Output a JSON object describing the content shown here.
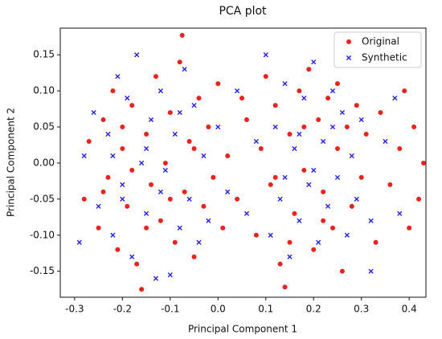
{
  "chart_data": {
    "type": "scatter",
    "title": "PCA plot",
    "x_label": "Principal Component 1",
    "y_label": "Principal Component 2",
    "xlim": [
      -0.33,
      0.435
    ],
    "ylim": [
      -0.186,
      0.187
    ],
    "xticks": [
      -0.3,
      -0.2,
      -0.1,
      {
        "value": 0,
        "label": "0.0"
      },
      0.1,
      0.2,
      0.3,
      0.4
    ],
    "yticks": [
      -0.15,
      {
        "value": -0.1,
        "label": "-0.10"
      },
      -0.05,
      {
        "value": 0,
        "label": "0.00"
      },
      0.05,
      {
        "value": 0.1,
        "label": "0.10"
      },
      0.15
    ],
    "legend": "upper right",
    "series": [
      {
        "name": "Original",
        "color": "#e8241c",
        "marker": "circle",
        "x": [
          -0.28,
          -0.27,
          -0.25,
          -0.24,
          -0.23,
          -0.22,
          -0.21,
          -0.2,
          -0.19,
          -0.18,
          -0.17,
          -0.16,
          -0.15,
          -0.14,
          -0.13,
          -0.12,
          -0.11,
          -0.1,
          -0.09,
          -0.08,
          -0.075,
          -0.07,
          -0.06,
          -0.05,
          -0.04,
          -0.03,
          -0.02,
          -0.01,
          0.0,
          0.01,
          0.02,
          0.04,
          0.06,
          0.08,
          0.09,
          0.1,
          0.11,
          0.12,
          0.13,
          0.14,
          0.15,
          0.16,
          0.17,
          0.18,
          0.19,
          0.2,
          0.21,
          0.22,
          0.23,
          0.24,
          0.25,
          0.26,
          0.27,
          0.28,
          0.29,
          0.3,
          0.31,
          0.33,
          0.34,
          0.36,
          0.38,
          0.4,
          0.41,
          0.42,
          0.43,
          0.39,
          -0.15,
          -0.2,
          0.18,
          0.22,
          -0.1,
          0.12,
          0.05,
          -0.18,
          0.25,
          -0.24,
          0.15,
          -0.05
        ],
        "values": [
          -0.05,
          0.03,
          -0.09,
          0.06,
          -0.02,
          0.1,
          -0.12,
          0.02,
          -0.06,
          0.08,
          -0.14,
          -0.175,
          0.04,
          -0.03,
          0.12,
          -0.08,
          0.0,
          0.07,
          -0.11,
          0.14,
          0.177,
          -0.04,
          0.03,
          -0.13,
          0.09,
          -0.06,
          0.05,
          -0.02,
          0.11,
          -0.09,
          0.01,
          -0.05,
          0.06,
          -0.1,
          0.02,
          0.12,
          -0.03,
          0.08,
          -0.14,
          -0.172,
          0.04,
          -0.07,
          0.1,
          -0.01,
          0.13,
          -0.12,
          0.06,
          -0.04,
          0.09,
          -0.09,
          0.02,
          -0.15,
          0.05,
          -0.06,
          0.08,
          -0.02,
          0.04,
          -0.11,
          0.07,
          -0.03,
          0.02,
          -0.09,
          0.05,
          -0.05,
          0.0,
          0.1,
          -0.09,
          0.05,
          0.05,
          -0.08,
          -0.05,
          -0.02,
          0.09,
          -0.01,
          0.11,
          -0.04,
          -0.11,
          0.02
        ]
      },
      {
        "name": "Synthetic",
        "color": "#2323e0",
        "marker": "x",
        "x": [
          -0.29,
          -0.28,
          -0.26,
          -0.25,
          -0.23,
          -0.22,
          -0.21,
          -0.2,
          -0.19,
          -0.18,
          -0.17,
          -0.16,
          -0.15,
          -0.14,
          -0.13,
          -0.12,
          -0.11,
          -0.1,
          -0.09,
          -0.08,
          -0.07,
          -0.06,
          -0.05,
          -0.04,
          -0.03,
          -0.02,
          0.0,
          0.02,
          0.04,
          0.06,
          0.08,
          0.1,
          0.11,
          0.12,
          0.13,
          0.14,
          0.15,
          0.16,
          0.17,
          0.18,
          0.19,
          0.2,
          0.21,
          0.22,
          0.23,
          0.24,
          0.25,
          0.26,
          0.27,
          0.28,
          0.29,
          0.3,
          0.32,
          0.35,
          0.37,
          0.38,
          0.32,
          -0.15,
          -0.2,
          0.17,
          0.2,
          -0.12,
          -0.08,
          0.14,
          -0.22,
          0.24
        ],
        "values": [
          -0.11,
          0.01,
          0.07,
          -0.06,
          0.04,
          -0.1,
          0.12,
          -0.03,
          0.09,
          -0.13,
          0.15,
          0.0,
          -0.07,
          0.06,
          -0.16,
          0.1,
          -0.01,
          -0.155,
          0.04,
          -0.09,
          0.13,
          -0.05,
          0.08,
          -0.11,
          0.01,
          -0.08,
          0.05,
          -0.04,
          0.1,
          -0.07,
          0.03,
          0.15,
          -0.1,
          0.05,
          -0.05,
          0.11,
          -0.13,
          0.02,
          -0.08,
          0.09,
          -0.03,
          0.14,
          -0.11,
          0.03,
          -0.06,
          0.1,
          -0.02,
          0.07,
          -0.1,
          0.01,
          -0.05,
          0.06,
          -0.08,
          0.03,
          0.09,
          -0.07,
          -0.15,
          0.02,
          -0.05,
          0.04,
          -0.01,
          -0.04,
          0.07,
          -0.02,
          0.01,
          0.05
        ]
      }
    ]
  }
}
